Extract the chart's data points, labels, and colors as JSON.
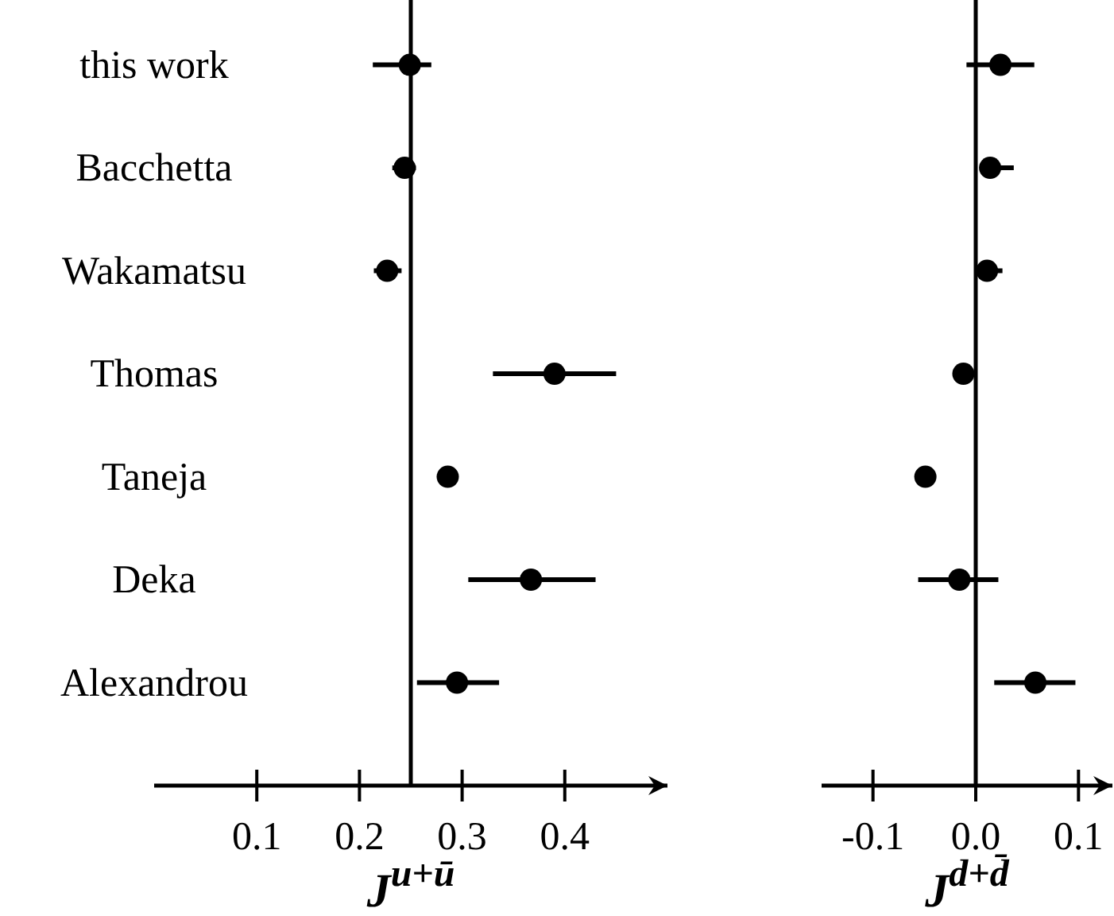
{
  "chart_data": [
    {
      "type": "scatter",
      "orientation": "horizontal",
      "marker": "circle",
      "xlabel": "J$^{u+ū}$",
      "categories": [
        "this work",
        "Bacchetta",
        "Wakamatsu",
        "Thomas",
        "Taneja",
        "Deka",
        "Alexandrou"
      ],
      "series": [
        {
          "color": "#000000",
          "values": [
            0.249,
            0.244,
            0.227,
            0.39,
            0.286,
            0.367,
            0.295
          ],
          "errors": [
            [
              0.213,
              0.27
            ],
            [
              0.232,
              0.255
            ],
            [
              0.214,
              0.241
            ],
            [
              0.33,
              0.45
            ],
            null,
            [
              0.306,
              0.43
            ],
            [
              0.256,
              0.336
            ]
          ]
        }
      ],
      "xlim": [
        0,
        0.5
      ],
      "xticks": [
        0.1,
        0.2,
        0.3,
        0.4
      ],
      "ref_lines": [
        {
          "axis": "x",
          "value": 0.25,
          "color": "#000000"
        }
      ]
    },
    {
      "type": "scatter",
      "orientation": "horizontal",
      "marker": "circle",
      "xlabel": "J$^{d+d̄}$",
      "tick_labels": "x",
      "series": [
        {
          "color": "#000000",
          "values": [
            0.024,
            0.014,
            0.011,
            -0.012,
            -0.049,
            -0.016,
            0.058
          ],
          "errors": [
            [
              -0.009,
              0.057
            ],
            [
              0.008,
              0.037
            ],
            [
              0.0,
              0.026
            ],
            null,
            null,
            [
              -0.056,
              0.022
            ],
            [
              0.018,
              0.097
            ]
          ]
        }
      ],
      "xlim": [
        -0.15,
        0.133
      ],
      "xticks": [
        -0.1,
        {
          "value": 0,
          "label": "0.0"
        },
        0.1
      ],
      "ref_lines": [
        {
          "axis": "x",
          "value": 0,
          "color": "#000000"
        }
      ]
    }
  ]
}
